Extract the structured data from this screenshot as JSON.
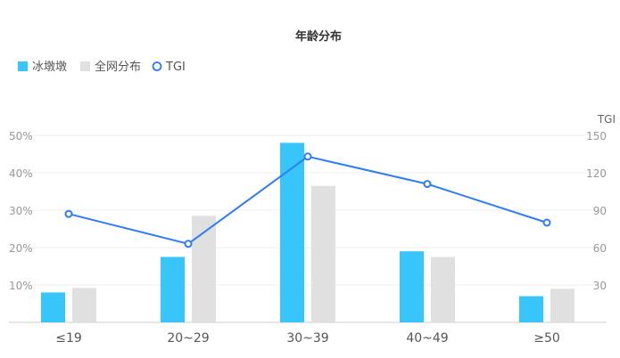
{
  "chart_data": {
    "type": "bar",
    "title": "年龄分布",
    "categories": [
      "≤19",
      "20~29",
      "30~39",
      "40~49",
      "≥50"
    ],
    "series": [
      {
        "name": "冰墩墩",
        "type": "bar",
        "axis": "left",
        "color": "#38c6fa",
        "values": [
          8,
          17.5,
          48,
          19,
          7
        ]
      },
      {
        "name": "全网分布",
        "type": "bar",
        "axis": "left",
        "color": "#e0e0e0",
        "values": [
          9.2,
          28.5,
          36.5,
          17.5,
          9
        ]
      },
      {
        "name": "TGI",
        "type": "line",
        "axis": "right",
        "color": "#2e7cf6",
        "values": [
          87,
          63,
          133,
          111,
          80
        ]
      }
    ],
    "y_left": {
      "ticks": [
        "10%",
        "20%",
        "30%",
        "40%",
        "50%"
      ],
      "values": [
        10,
        20,
        30,
        40,
        50
      ],
      "range": [
        0,
        50
      ]
    },
    "y_right": {
      "label": "TGI",
      "ticks": [
        "30",
        "60",
        "90",
        "120",
        "150"
      ],
      "values": [
        30,
        60,
        90,
        120,
        150
      ],
      "range": [
        0,
        150
      ]
    },
    "grid": true,
    "legend_position": "top-left"
  }
}
